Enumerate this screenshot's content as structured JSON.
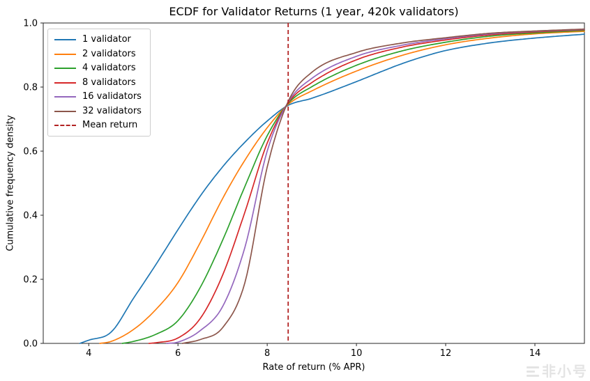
{
  "watermark": {
    "text": "非小号"
  },
  "chart_data": {
    "type": "line",
    "title": "ECDF for Validator Returns (1 year, 420k validators)",
    "xlabel": "Rate of return (% APR)",
    "ylabel": "Cumulative frequency density",
    "xlim": [
      2.98,
      15.11
    ],
    "ylim": [
      0.0,
      1.0
    ],
    "xticks": [
      4,
      6,
      8,
      10,
      12,
      14
    ],
    "yticks": [
      0.0,
      0.2,
      0.4,
      0.6,
      0.8,
      1.0
    ],
    "grid": false,
    "legend_position": "upper left",
    "line_width": 1.7,
    "series": [
      {
        "name": "1 validator",
        "color": "#1f77b4",
        "points": [
          [
            3.8,
            0.0
          ],
          [
            4.0,
            0.01
          ],
          [
            4.5,
            0.035
          ],
          [
            5.0,
            0.14
          ],
          [
            5.5,
            0.245
          ],
          [
            6.0,
            0.355
          ],
          [
            6.5,
            0.46
          ],
          [
            7.0,
            0.551
          ],
          [
            7.5,
            0.628
          ],
          [
            8.0,
            0.694
          ],
          [
            8.47,
            0.743
          ],
          [
            9.0,
            0.765
          ],
          [
            10.0,
            0.817
          ],
          [
            10.5,
            0.845
          ],
          [
            11.0,
            0.872
          ],
          [
            11.5,
            0.895
          ],
          [
            12.0,
            0.914
          ],
          [
            13.0,
            0.938
          ],
          [
            14.0,
            0.953
          ],
          [
            15.11,
            0.965
          ]
        ]
      },
      {
        "name": "2 validators",
        "color": "#ff7f0e",
        "points": [
          [
            4.25,
            0.0
          ],
          [
            4.5,
            0.006
          ],
          [
            5.0,
            0.043
          ],
          [
            5.5,
            0.105
          ],
          [
            6.0,
            0.19
          ],
          [
            6.5,
            0.315
          ],
          [
            7.0,
            0.452
          ],
          [
            7.5,
            0.572
          ],
          [
            8.0,
            0.673
          ],
          [
            8.47,
            0.746
          ],
          [
            9.0,
            0.788
          ],
          [
            10.0,
            0.85
          ],
          [
            11.0,
            0.898
          ],
          [
            12.0,
            0.932
          ],
          [
            13.0,
            0.953
          ],
          [
            14.0,
            0.966
          ],
          [
            15.11,
            0.974
          ]
        ]
      },
      {
        "name": "4 validators",
        "color": "#2ca02c",
        "points": [
          [
            4.75,
            0.0
          ],
          [
            5.0,
            0.006
          ],
          [
            5.5,
            0.028
          ],
          [
            6.0,
            0.071
          ],
          [
            6.5,
            0.175
          ],
          [
            7.0,
            0.322
          ],
          [
            7.5,
            0.49
          ],
          [
            8.0,
            0.648
          ],
          [
            8.47,
            0.749
          ],
          [
            9.0,
            0.801
          ],
          [
            10.0,
            0.868
          ],
          [
            11.0,
            0.912
          ],
          [
            12.0,
            0.94
          ],
          [
            13.0,
            0.959
          ],
          [
            14.0,
            0.969
          ],
          [
            15.11,
            0.977
          ]
        ]
      },
      {
        "name": "8 validators",
        "color": "#d62728",
        "points": [
          [
            5.35,
            0.0
          ],
          [
            5.5,
            0.002
          ],
          [
            6.0,
            0.017
          ],
          [
            6.5,
            0.078
          ],
          [
            7.0,
            0.213
          ],
          [
            7.5,
            0.41
          ],
          [
            8.0,
            0.625
          ],
          [
            8.47,
            0.751
          ],
          [
            9.0,
            0.814
          ],
          [
            10.0,
            0.885
          ],
          [
            11.0,
            0.924
          ],
          [
            12.0,
            0.947
          ],
          [
            13.0,
            0.963
          ],
          [
            14.0,
            0.972
          ],
          [
            15.11,
            0.979
          ]
        ]
      },
      {
        "name": "16 validators",
        "color": "#9467bd",
        "points": [
          [
            5.75,
            0.0
          ],
          [
            6.0,
            0.004
          ],
          [
            6.5,
            0.04
          ],
          [
            7.0,
            0.115
          ],
          [
            7.5,
            0.3
          ],
          [
            8.0,
            0.6
          ],
          [
            8.47,
            0.753
          ],
          [
            9.0,
            0.827
          ],
          [
            10.0,
            0.896
          ],
          [
            11.0,
            0.93
          ],
          [
            12.0,
            0.951
          ],
          [
            13.0,
            0.966
          ],
          [
            14.0,
            0.974
          ],
          [
            15.11,
            0.98
          ]
        ]
      },
      {
        "name": "32 validators",
        "color": "#8c564b",
        "points": [
          [
            6.1,
            0.0
          ],
          [
            6.5,
            0.012
          ],
          [
            7.0,
            0.049
          ],
          [
            7.5,
            0.19
          ],
          [
            8.0,
            0.55
          ],
          [
            8.47,
            0.755
          ],
          [
            9.0,
            0.846
          ],
          [
            10.0,
            0.908
          ],
          [
            11.0,
            0.937
          ],
          [
            12.0,
            0.954
          ],
          [
            13.0,
            0.968
          ],
          [
            14.0,
            0.975
          ],
          [
            15.11,
            0.981
          ]
        ]
      }
    ],
    "vline": {
      "label": "Mean return",
      "x": 8.47,
      "color": "#b22222",
      "style": "dashed"
    }
  }
}
